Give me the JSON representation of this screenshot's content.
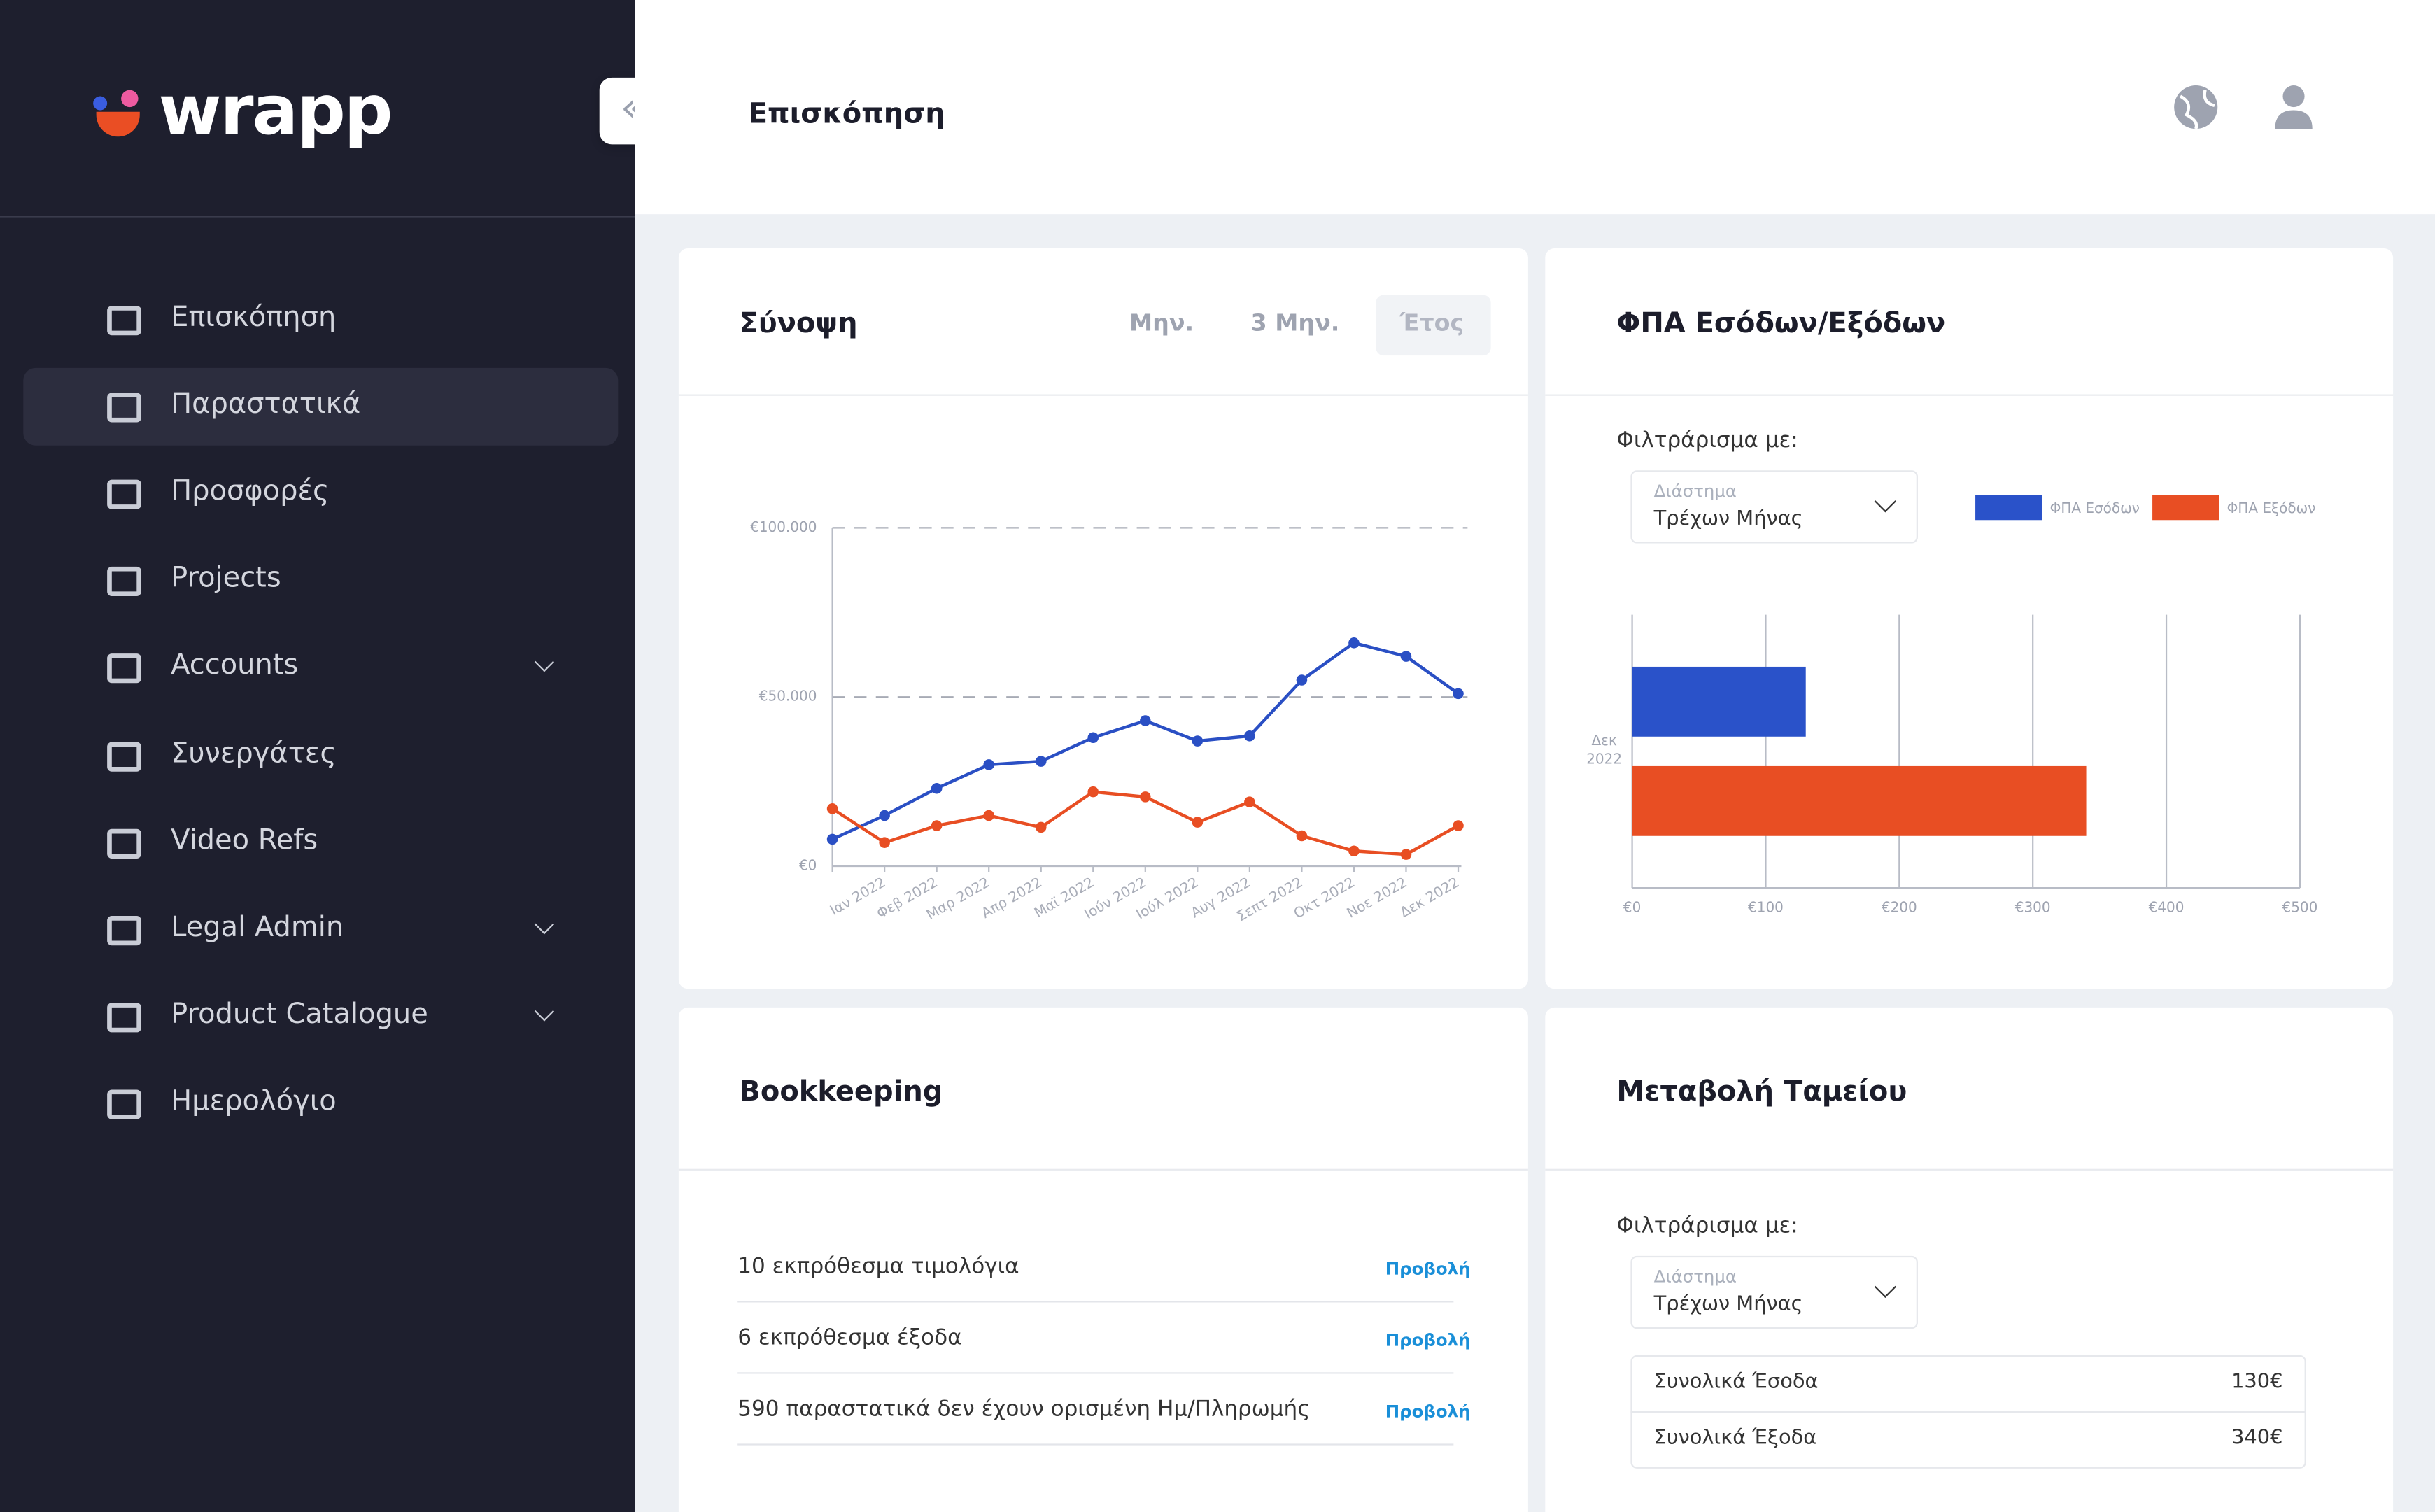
{
  "sidebar": {
    "logo": "wrapp",
    "active": 1,
    "items": [
      {
        "label": "Επισκόπηση"
      },
      {
        "label": "Παραστατικά"
      },
      {
        "label": "Προσφορές"
      },
      {
        "label": "Projects"
      },
      {
        "label": "Accounts",
        "expandable": true
      },
      {
        "label": "Συνεργάτες"
      },
      {
        "label": "Video Refs"
      },
      {
        "label": "Legal Admin",
        "expandable": true
      },
      {
        "label": "Product Catalogue",
        "expandable": true
      },
      {
        "label": "Ημερολόγιο"
      }
    ]
  },
  "header": {
    "title": "Επισκόπηση"
  },
  "summary": {
    "title": "Σύνοψη",
    "tabs": [
      "Μην.",
      "3 Μην.",
      "Έτος"
    ],
    "selected": 2
  },
  "vat": {
    "filter": {
      "label": "Φιλτράρισμα με:",
      "field": "Διάστημα",
      "value": "Τρέχων Μήνας"
    }
  },
  "chart_data": [
    {
      "type": "line",
      "categories": [
        null,
        "Ιαν 2022",
        "Φεβ 2022",
        "Μαρ 2022",
        "Απρ 2022",
        "Μαϊ 2022",
        "Ιούν 2022",
        "Ιούλ 2022",
        "Αυγ 2022",
        "Σεπτ 2022",
        "Οκτ 2022",
        "Νοε 2022",
        "Δεκ 2022"
      ],
      "series": [
        {
          "color": "#2a4fc4",
          "values": [
            8000,
            15000,
            23000,
            30000,
            31000,
            38000,
            43000,
            37000,
            38500,
            55000,
            66000,
            62000,
            51000
          ]
        },
        {
          "color": "#e84e23",
          "values": [
            17000,
            7000,
            12000,
            15000,
            11500,
            22000,
            20500,
            13000,
            19000,
            9000,
            4500,
            3500,
            12000
          ]
        }
      ],
      "ylim": [
        0,
        100000
      ],
      "yticks": [
        {
          "value": 0,
          "label": "€0"
        },
        {
          "value": 50000,
          "label": "€50.000"
        },
        {
          "value": 100000,
          "label": "€100.000"
        }
      ],
      "grid": true
    },
    {
      "type": "bar",
      "orientation": "horizontal",
      "title": "ΦΠΑ Εσόδων/Εξόδων",
      "categories": [
        "Δεκ 2022"
      ],
      "series": [
        {
          "name": "ΦΠΑ Εσόδων",
          "color": "#2a52c9",
          "values": [
            130
          ]
        },
        {
          "name": "ΦΠΑ Εξόδων",
          "color": "#e84e23",
          "values": [
            340
          ]
        }
      ],
      "xlim": [
        0,
        500
      ],
      "xticks": [
        {
          "value": 0,
          "label": "€0"
        },
        {
          "value": 100,
          "label": "€100"
        },
        {
          "value": 200,
          "label": "€200"
        },
        {
          "value": 300,
          "label": "€300"
        },
        {
          "value": 400,
          "label": "€400"
        },
        {
          "value": 500,
          "label": "€500"
        }
      ],
      "grid": true,
      "legend": "top-right"
    }
  ],
  "bookkeeping": {
    "title": "Bookkeeping",
    "rows": [
      {
        "text": "10 εκπρόθεσμα τιμολόγια",
        "action": "Προβολή"
      },
      {
        "text": "6 εκπρόθεσμα έξοδα",
        "action": "Προβολή"
      },
      {
        "text": "590 παραστατικά δεν έχουν ορισμένη Ημ/Πληρωμής",
        "action": "Προβολή"
      }
    ]
  },
  "cash": {
    "title": "Μεταβολή Ταμείου",
    "filter": {
      "label": "Φιλτράρισμα με:",
      "field": "Διάστημα",
      "value": "Τρέχων Μήνας"
    },
    "rows": [
      {
        "label": "Συνολικά Έσοδα",
        "value": "130€"
      },
      {
        "label": "Συνολικά Έξοδα",
        "value": "340€"
      }
    ]
  }
}
